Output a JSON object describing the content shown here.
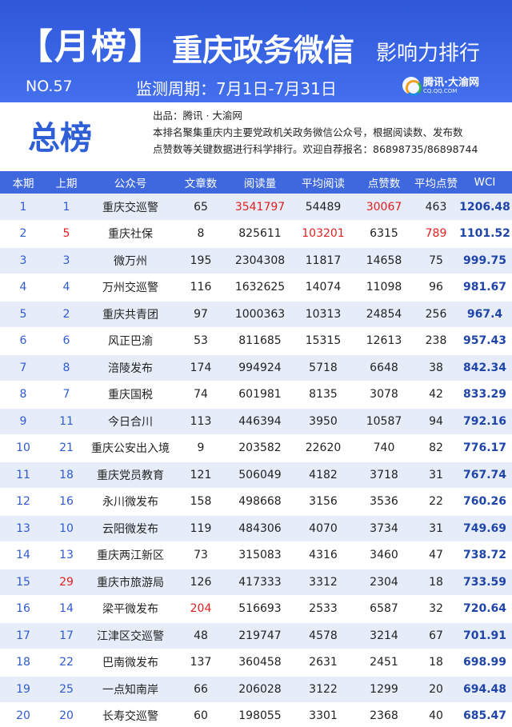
{
  "header": {
    "bracket_title": "【月榜】",
    "main_title": "重庆政务微信",
    "sub_title": "影响力排行",
    "issue_no": "NO.57",
    "period": "监测周期：7月1日-7月31日",
    "logo_text": "腾讯·大渝网",
    "logo_sub": "CQ.QQ.COM"
  },
  "intro": {
    "title": "总榜",
    "line1": "出品：腾讯 · 大渝网",
    "line2": "本排名聚集重庆内主要党政机关政务微信公众号，根据阅读数、发布数",
    "line3": "点赞数等关键数据进行科学排行。欢迎自荐报名：86898735/86898744"
  },
  "colors": {
    "header_bg": "#3a66e6",
    "accent_blue": "#2f5fd6",
    "highlight_red": "#e02020",
    "row_alt": "#e6edf9"
  },
  "table": {
    "columns": [
      "本期",
      "上期",
      "公众号",
      "文章数",
      "阅读量",
      "平均阅读",
      "点赞数",
      "平均点赞",
      "WCI"
    ],
    "rows": [
      [
        "1",
        "1",
        "重庆交巡警",
        "65",
        "3541797",
        "54489",
        "30067",
        "463",
        "1206.48"
      ],
      [
        "2",
        "5",
        "重庆社保",
        "8",
        "825611",
        "103201",
        "6315",
        "789",
        "1101.52"
      ],
      [
        "3",
        "3",
        "微万州",
        "195",
        "2304308",
        "11817",
        "14658",
        "75",
        "999.75"
      ],
      [
        "4",
        "4",
        "万州交巡警",
        "116",
        "1632625",
        "14074",
        "11098",
        "96",
        "981.67"
      ],
      [
        "5",
        "2",
        "重庆共青团",
        "97",
        "1000363",
        "10313",
        "24854",
        "256",
        "967.4"
      ],
      [
        "6",
        "6",
        "风正巴渝",
        "53",
        "811685",
        "15315",
        "12613",
        "238",
        "957.43"
      ],
      [
        "7",
        "8",
        "涪陵发布",
        "174",
        "994924",
        "5718",
        "6648",
        "38",
        "842.34"
      ],
      [
        "8",
        "7",
        "重庆国税",
        "74",
        "601981",
        "8135",
        "3078",
        "42",
        "833.29"
      ],
      [
        "9",
        "11",
        "今日合川",
        "113",
        "446394",
        "3950",
        "10587",
        "94",
        "792.16"
      ],
      [
        "10",
        "21",
        "重庆公安出入境",
        "9",
        "203582",
        "22620",
        "740",
        "82",
        "776.17"
      ],
      [
        "11",
        "18",
        "重庆党员教育",
        "121",
        "506049",
        "4182",
        "3718",
        "31",
        "767.74"
      ],
      [
        "12",
        "16",
        "永川微发布",
        "158",
        "498668",
        "3156",
        "3536",
        "22",
        "760.26"
      ],
      [
        "13",
        "10",
        "云阳微发布",
        "119",
        "484306",
        "4070",
        "3734",
        "31",
        "749.69"
      ],
      [
        "14",
        "13",
        "重庆两江新区",
        "73",
        "315083",
        "4316",
        "3460",
        "47",
        "738.72"
      ],
      [
        "15",
        "29",
        "重庆市旅游局",
        "126",
        "417333",
        "3312",
        "2304",
        "18",
        "733.59"
      ],
      [
        "16",
        "14",
        "梁平微发布",
        "204",
        "516693",
        "2533",
        "6587",
        "32",
        "720.64"
      ],
      [
        "17",
        "17",
        "江津区交巡警",
        "48",
        "219747",
        "4578",
        "3214",
        "67",
        "701.91"
      ],
      [
        "18",
        "22",
        "巴南微发布",
        "137",
        "360458",
        "2631",
        "2451",
        "18",
        "698.99"
      ],
      [
        "19",
        "25",
        "一点知南岸",
        "66",
        "206028",
        "3122",
        "1299",
        "20",
        "694.48"
      ],
      [
        "20",
        "20",
        "长寿交巡警",
        "60",
        "198055",
        "3301",
        "2368",
        "40",
        "685.47"
      ]
    ],
    "highlights": [
      [
        0,
        4
      ],
      [
        0,
        6
      ],
      [
        1,
        1
      ],
      [
        1,
        5
      ],
      [
        1,
        7
      ],
      [
        14,
        1
      ],
      [
        15,
        3
      ]
    ]
  }
}
